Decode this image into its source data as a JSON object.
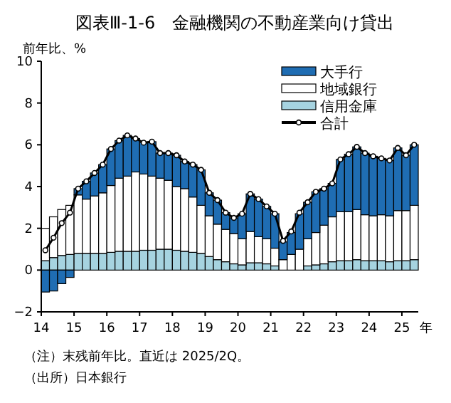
{
  "chart_data": {
    "type": "bar",
    "title": "図表Ⅲ-1-6　金融機関の不動産業向け貸出",
    "ylabel": "前年比、%",
    "xlabel": "年",
    "stacked": true,
    "legend": "top right",
    "grid": false,
    "xlim": [
      14,
      25.5
    ],
    "xticks": [
      14,
      15,
      16,
      17,
      18,
      19,
      20,
      21,
      22,
      23,
      24,
      25
    ],
    "ylim": [
      -2,
      10
    ],
    "yticks": [
      {
        "value": -2,
        "label": "−2"
      },
      0,
      2,
      4,
      6,
      8,
      10
    ],
    "x": [
      14.125,
      14.375,
      14.625,
      14.875,
      15.125,
      15.375,
      15.625,
      15.875,
      16.125,
      16.375,
      16.625,
      16.875,
      17.125,
      17.375,
      17.625,
      17.875,
      18.125,
      18.375,
      18.625,
      18.875,
      19.125,
      19.375,
      19.625,
      19.875,
      20.125,
      20.375,
      20.625,
      20.875,
      21.125,
      21.375,
      21.625,
      21.875,
      22.125,
      22.375,
      22.625,
      22.875,
      23.125,
      23.375,
      23.625,
      23.875,
      24.125,
      24.375,
      24.625,
      24.875,
      25.125,
      25.375
    ],
    "series": [
      {
        "name": "信用金庫",
        "color": "#a6d3e0",
        "values": [
          0.45,
          0.6,
          0.7,
          0.75,
          0.8,
          0.8,
          0.8,
          0.8,
          0.85,
          0.9,
          0.9,
          0.9,
          0.95,
          0.95,
          1.0,
          1.0,
          0.95,
          0.9,
          0.85,
          0.8,
          0.65,
          0.5,
          0.4,
          0.3,
          0.25,
          0.35,
          0.35,
          0.3,
          0.2,
          null,
          null,
          null,
          0.2,
          0.25,
          0.3,
          0.4,
          0.45,
          0.45,
          0.5,
          0.45,
          0.45,
          0.45,
          0.4,
          0.45,
          0.45,
          0.5
        ]
      },
      {
        "name": "地域銀行",
        "color": "#ffffff",
        "values": [
          1.55,
          1.95,
          2.2,
          2.35,
          2.8,
          2.6,
          2.75,
          2.9,
          3.2,
          3.5,
          3.6,
          3.8,
          3.65,
          3.55,
          3.4,
          3.3,
          3.05,
          3.0,
          2.65,
          2.3,
          1.95,
          1.7,
          1.55,
          1.45,
          1.25,
          1.5,
          1.25,
          1.2,
          0.85,
          0.5,
          0.75,
          1.0,
          1.3,
          1.55,
          1.85,
          2.15,
          2.35,
          2.35,
          2.4,
          2.2,
          2.15,
          2.2,
          2.2,
          2.4,
          2.4,
          2.6
        ]
      },
      {
        "name": "大手行",
        "color": "#1f6db3",
        "values": [
          -1.05,
          -1.0,
          -0.65,
          -0.35,
          0.3,
          0.85,
          1.1,
          1.35,
          1.75,
          1.8,
          1.95,
          1.6,
          1.5,
          1.65,
          1.2,
          1.3,
          1.5,
          1.3,
          1.55,
          1.7,
          1.1,
          1.15,
          0.8,
          0.75,
          1.2,
          1.8,
          1.8,
          1.55,
          1.65,
          0.85,
          1.05,
          1.7,
          1.75,
          1.95,
          1.75,
          1.6,
          2.5,
          2.75,
          3.0,
          2.95,
          2.85,
          2.7,
          2.65,
          3.0,
          2.65,
          2.9
        ]
      },
      {
        "name": "合計",
        "type": "line",
        "color": "#000000",
        "marker": "circle",
        "values": [
          0.95,
          1.55,
          2.25,
          2.75,
          3.9,
          4.25,
          4.65,
          5.05,
          5.8,
          6.2,
          6.45,
          6.3,
          6.1,
          6.15,
          5.6,
          5.6,
          5.5,
          5.2,
          5.05,
          4.8,
          3.7,
          3.35,
          2.75,
          2.5,
          2.7,
          3.65,
          3.4,
          3.05,
          2.7,
          1.4,
          1.85,
          2.75,
          3.25,
          3.75,
          3.9,
          4.15,
          5.3,
          5.55,
          5.9,
          5.6,
          5.45,
          5.35,
          5.25,
          5.85,
          5.5,
          6.0
        ]
      }
    ],
    "annotations": [
      "（注）末残前年比。直近は 2025/2Q。",
      "（出所）日本銀行"
    ]
  }
}
